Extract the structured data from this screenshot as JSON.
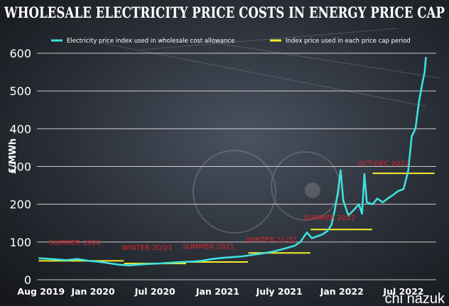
{
  "chart_data": {
    "type": "line",
    "title": "WHOLESALE ELECTRICITY PRICE COSTS IN ENERGY PRICE CAP",
    "ylabel": "£/MWh",
    "xlabel": "",
    "ylim": [
      0,
      600
    ],
    "yticks": [
      0,
      100,
      200,
      300,
      400,
      500,
      600
    ],
    "xlim": [
      "2019-07-20",
      "2022-10-05"
    ],
    "xticks": [
      {
        "date": "2019-08-01",
        "label": "Aug 2019"
      },
      {
        "date": "2020-01-01",
        "label": "Jan 2020"
      },
      {
        "date": "2020-07-01",
        "label": "Jul 2020"
      },
      {
        "date": "2021-01-01",
        "label": "Jan 2021"
      },
      {
        "date": "2021-07-01",
        "label": "July 2021"
      },
      {
        "date": "2022-01-01",
        "label": "Jan 2022"
      },
      {
        "date": "2022-07-01",
        "label": "Jul 2022"
      }
    ],
    "grid": true,
    "legend_position": "top",
    "series": [
      {
        "name": "Electricity price index used in wholesale cost allowance",
        "color": "#3de0dc",
        "points": [
          [
            "2019-07-25",
            57
          ],
          [
            "2019-09-01",
            55
          ],
          [
            "2019-10-15",
            52
          ],
          [
            "2019-11-15",
            55
          ],
          [
            "2019-12-20",
            50
          ],
          [
            "2020-01-15",
            48
          ],
          [
            "2020-02-15",
            44
          ],
          [
            "2020-03-15",
            40
          ],
          [
            "2020-04-15",
            38
          ],
          [
            "2020-05-15",
            40
          ],
          [
            "2020-06-15",
            42
          ],
          [
            "2020-07-15",
            43
          ],
          [
            "2020-08-15",
            45
          ],
          [
            "2020-09-15",
            47
          ],
          [
            "2020-10-15",
            48
          ],
          [
            "2020-11-15",
            50
          ],
          [
            "2020-12-15",
            55
          ],
          [
            "2021-01-15",
            58
          ],
          [
            "2021-02-15",
            60
          ],
          [
            "2021-03-15",
            62
          ],
          [
            "2021-04-15",
            66
          ],
          [
            "2021-05-15",
            70
          ],
          [
            "2021-06-15",
            75
          ],
          [
            "2021-07-15",
            82
          ],
          [
            "2021-08-15",
            90
          ],
          [
            "2021-09-01",
            100
          ],
          [
            "2021-09-20",
            125
          ],
          [
            "2021-10-05",
            110
          ],
          [
            "2021-10-20",
            115
          ],
          [
            "2021-11-05",
            120
          ],
          [
            "2021-11-20",
            130
          ],
          [
            "2021-12-01",
            145
          ],
          [
            "2021-12-10",
            180
          ],
          [
            "2021-12-20",
            230
          ],
          [
            "2021-12-28",
            290
          ],
          [
            "2022-01-05",
            210
          ],
          [
            "2022-01-20",
            170
          ],
          [
            "2022-02-05",
            185
          ],
          [
            "2022-02-20",
            200
          ],
          [
            "2022-03-01",
            175
          ],
          [
            "2022-03-08",
            280
          ],
          [
            "2022-03-15",
            205
          ],
          [
            "2022-04-01",
            200
          ],
          [
            "2022-04-15",
            215
          ],
          [
            "2022-05-01",
            205
          ],
          [
            "2022-05-15",
            215
          ],
          [
            "2022-06-01",
            225
          ],
          [
            "2022-06-15",
            235
          ],
          [
            "2022-07-01",
            240
          ],
          [
            "2022-07-15",
            290
          ],
          [
            "2022-07-25",
            380
          ],
          [
            "2022-08-05",
            400
          ],
          [
            "2022-08-15",
            470
          ],
          [
            "2022-08-25",
            520
          ],
          [
            "2022-09-01",
            550
          ],
          [
            "2022-09-05",
            590
          ]
        ]
      },
      {
        "name": "Index price used in each price cap period",
        "color": "#f3ee2a",
        "segments": [
          {
            "start": "2019-07-25",
            "end": "2020-03-31",
            "value": 50
          },
          {
            "start": "2020-04-01",
            "end": "2020-09-30",
            "value": 43
          },
          {
            "start": "2020-10-01",
            "end": "2021-03-31",
            "value": 47
          },
          {
            "start": "2021-04-01",
            "end": "2021-09-30",
            "value": 71
          },
          {
            "start": "2021-10-01",
            "end": "2022-03-31",
            "value": 133
          },
          {
            "start": "2022-04-01",
            "end": "2022-09-30",
            "value": 282
          }
        ]
      }
    ],
    "annotations": [
      {
        "text": "SUMMER 2020",
        "date": "2019-08-25",
        "value": 92
      },
      {
        "text": "WINTER 20/21",
        "date": "2020-03-25",
        "value": 79
      },
      {
        "text": "SUMMER 2021",
        "date": "2020-09-20",
        "value": 82
      },
      {
        "text": "WINTER 21/22",
        "date": "2021-03-25",
        "value": 100
      },
      {
        "text": "SUMMER 2022",
        "date": "2021-09-10",
        "value": 158
      },
      {
        "text": "OCT-DEC 2022",
        "date": "2022-02-15",
        "value": 302
      }
    ],
    "annotation_color": "#e1242a"
  },
  "watermark": "chi nazuk"
}
